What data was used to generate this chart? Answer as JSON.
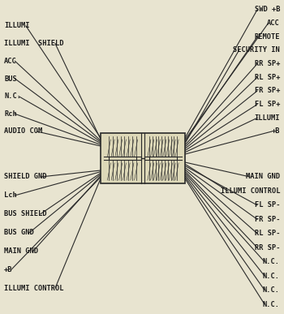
{
  "bg_color": "#e8e4d0",
  "line_color": "#2a2a2a",
  "text_color": "#1a1a1a",
  "figsize": [
    3.5,
    3.87
  ],
  "dpi": 100,
  "left_labels_top": [
    "ILLUMI",
    "ILLUMI  SHIELD",
    "ACC",
    "BUS",
    "N.C.",
    "Rch",
    "AUDIO COM"
  ],
  "left_labels_bottom": [
    "SHIELD GND",
    "Lch",
    "BUS SHIELD",
    "BUS GND",
    "MAIN GND",
    "+B",
    "ILLUMI CONTROL"
  ],
  "right_labels_top": [
    "SWD +B",
    "ACC",
    "REMOTE",
    "SECURITY IN",
    "RR SP+",
    "RL SP+",
    "FR SP+",
    "FL SP+",
    "ILLUMI",
    "+B"
  ],
  "right_labels_bottom": [
    "MAIN GND",
    "ILLUMI CONTROL",
    "FL SP-",
    "FR SP-",
    "RL SP-",
    "RR SP-",
    "N.C.",
    "N.C.",
    "N.C.",
    "N.C."
  ]
}
